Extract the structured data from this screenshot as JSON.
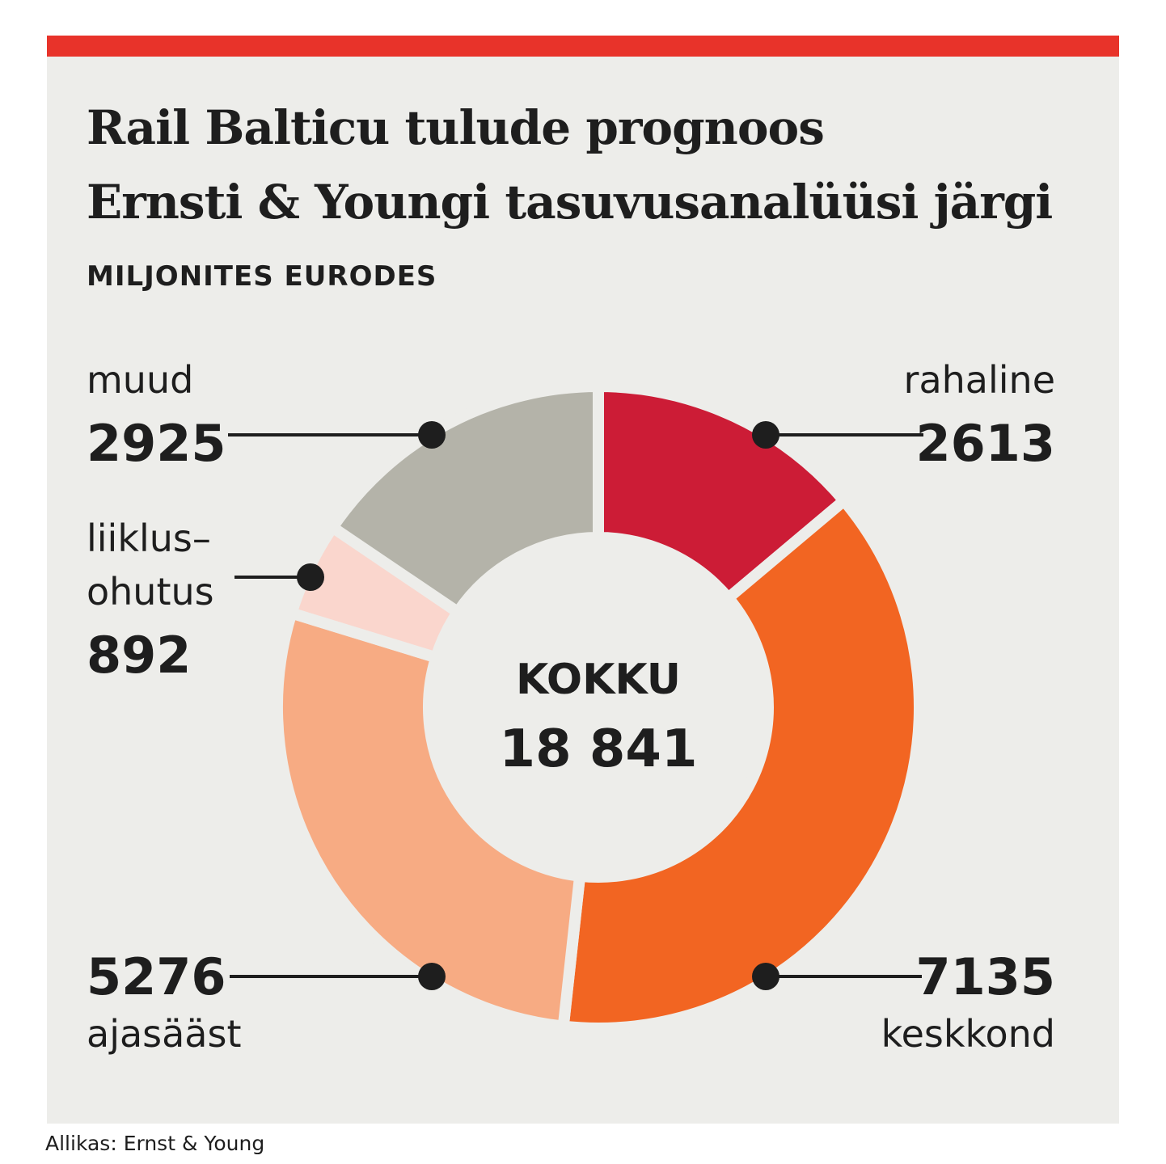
{
  "title_line1": "Rail Balticu tulude prognoos",
  "title_line2": "Ernsti & Youngi tasuvusanalüüsi järgi",
  "subtitle": "MILJONITES EURODES",
  "source": "Allikas: Ernst & Young",
  "chart_data": {
    "type": "donut",
    "title": "Rail Balticu tulude prognoos Ernsti & Youngi tasuvusanalüüsi järgi",
    "unit": "MILJONITES EURODES",
    "center_label": "KOKKU",
    "center_value": "18 841",
    "total": 18841,
    "slices": [
      {
        "label": "rahaline",
        "value": 2613,
        "color": "#cc1c36"
      },
      {
        "label": "keskkond",
        "value": 7135,
        "color": "#f26522"
      },
      {
        "label": "ajasääst",
        "value": 5276,
        "color": "#f7ab83"
      },
      {
        "label_line1": "liiklus–",
        "label_line2": "ohutus",
        "value": 892,
        "color": "#fad6cd"
      },
      {
        "label": "muud",
        "value": 2925,
        "color": "#b4b3a9"
      }
    ]
  }
}
